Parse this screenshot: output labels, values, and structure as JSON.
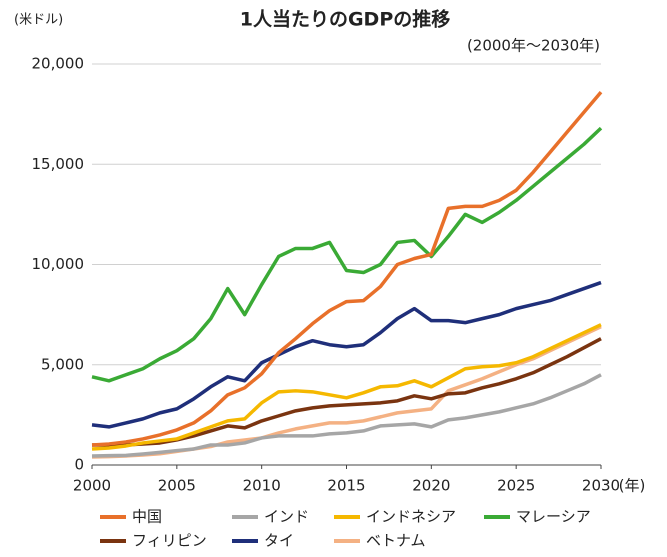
{
  "chart_data": {
    "type": "line",
    "title": "1人当たりのGDPの推移",
    "subtitle": "(2000年～2030年)",
    "y_label": "(米ドル)",
    "x_label": "(年)",
    "x": [
      2000,
      2001,
      2002,
      2003,
      2004,
      2005,
      2006,
      2007,
      2008,
      2009,
      2010,
      2011,
      2012,
      2013,
      2014,
      2015,
      2016,
      2017,
      2018,
      2019,
      2020,
      2021,
      2022,
      2023,
      2024,
      2025,
      2026,
      2027,
      2028,
      2029,
      2030
    ],
    "xlim": [
      2000,
      2030
    ],
    "xticks": [
      2000,
      2005,
      2010,
      2015,
      2020,
      2025,
      2030
    ],
    "ylim": [
      0,
      20000
    ],
    "yticks": [
      0,
      {
        "value": 5000,
        "label": "5,000"
      },
      {
        "value": 10000,
        "label": "10,000"
      },
      {
        "value": 15000,
        "label": "15,000"
      },
      {
        "value": 20000,
        "label": "20,000"
      }
    ],
    "grid": true,
    "legend": "bottom",
    "series": [
      {
        "name": "中国",
        "color": "#e8702a",
        "values": [
          1000,
          1050,
          1150,
          1300,
          1500,
          1750,
          2100,
          2700,
          3500,
          3850,
          4550,
          5600,
          6300,
          7050,
          7700,
          8150,
          8200,
          8900,
          10000,
          10300,
          10500,
          12800,
          12900,
          12900,
          13200,
          13700,
          14600,
          15600,
          16600,
          17600,
          18600
        ]
      },
      {
        "name": "インド",
        "color": "#a6a6a6",
        "values": [
          450,
          470,
          480,
          550,
          630,
          720,
          800,
          1000,
          1000,
          1100,
          1350,
          1450,
          1450,
          1450,
          1550,
          1600,
          1700,
          1950,
          2000,
          2050,
          1900,
          2250,
          2350,
          2500,
          2650,
          2850,
          3050,
          3350,
          3700,
          4050,
          4500
        ]
      },
      {
        "name": "インドネシア",
        "color": "#f5b800",
        "values": [
          800,
          850,
          950,
          1100,
          1200,
          1300,
          1600,
          1900,
          2200,
          2300,
          3100,
          3650,
          3700,
          3650,
          3500,
          3350,
          3600,
          3900,
          3950,
          4200,
          3900,
          4350,
          4800,
          4900,
          4950,
          5100,
          5400,
          5800,
          6200,
          6600,
          7000
        ]
      },
      {
        "name": "マレーシア",
        "color": "#3aaa35",
        "values": [
          4400,
          4200,
          4500,
          4800,
          5300,
          5700,
          6300,
          7300,
          8800,
          7500,
          9000,
          10400,
          10800,
          10800,
          11100,
          9700,
          9600,
          10000,
          11100,
          11200,
          10400,
          11400,
          12500,
          12100,
          12600,
          13200,
          13900,
          14600,
          15300,
          16000,
          16800
        ]
      },
      {
        "name": "フィリピン",
        "color": "#7a3410",
        "values": [
          1000,
          1000,
          1000,
          1050,
          1100,
          1250,
          1450,
          1700,
          1950,
          1850,
          2200,
          2450,
          2700,
          2850,
          2950,
          3000,
          3050,
          3100,
          3200,
          3450,
          3300,
          3550,
          3600,
          3850,
          4050,
          4300,
          4600,
          5000,
          5400,
          5850,
          6300
        ]
      },
      {
        "name": "タイ",
        "color": "#1f2f7a",
        "values": [
          2000,
          1900,
          2100,
          2300,
          2600,
          2800,
          3300,
          3900,
          4400,
          4200,
          5100,
          5500,
          5900,
          6200,
          6000,
          5900,
          6000,
          6600,
          7300,
          7800,
          7200,
          7200,
          7100,
          7300,
          7500,
          7800,
          8000,
          8200,
          8500,
          8800,
          9100
        ]
      },
      {
        "name": "ベトナム",
        "color": "#f4b183",
        "values": [
          400,
          420,
          450,
          500,
          560,
          680,
          800,
          920,
          1150,
          1250,
          1350,
          1600,
          1800,
          1950,
          2100,
          2100,
          2200,
          2400,
          2600,
          2700,
          2800,
          3700,
          4000,
          4300,
          4650,
          5000,
          5300,
          5700,
          6100,
          6500,
          6900
        ]
      }
    ]
  }
}
